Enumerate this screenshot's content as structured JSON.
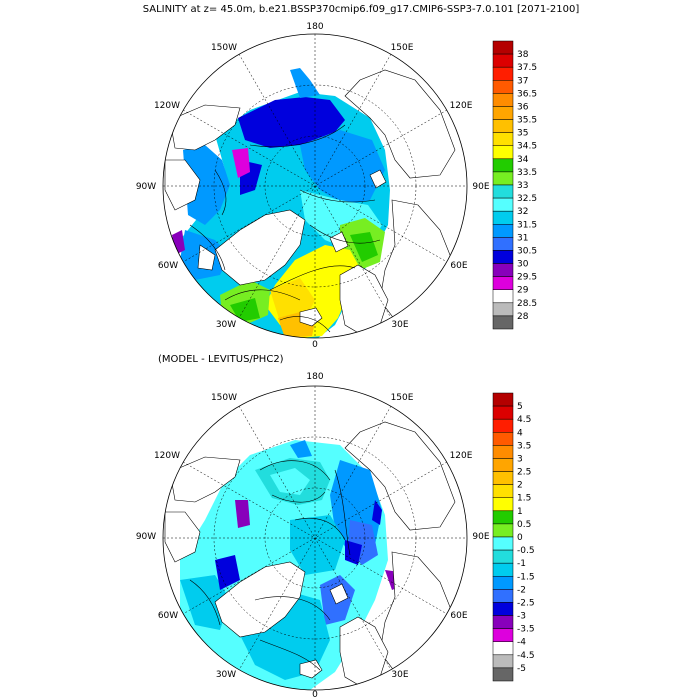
{
  "title": "SALINITY at z=  45.0m, b.e21.BSSP370cmip6.f09_g17.CMIP6-SSP3-7.0.101 [2071-2100]",
  "subtitle": "(MODEL - LEVITUS/PHC2)",
  "longitude_labels": {
    "top": "180",
    "top_right": "150E",
    "upper_right": "120E",
    "right": "90E",
    "lower_right": "60E",
    "bottom_right": "30E",
    "bottom": "0",
    "bottom_left": "30W",
    "lower_left": "60W",
    "left": "90W",
    "upper_left": "120W",
    "top_left": "150W"
  },
  "colorbars": {
    "salinity": {
      "labels": [
        "38",
        "37.5",
        "37",
        "36.5",
        "36",
        "35.5",
        "35",
        "34.5",
        "34",
        "33.5",
        "33",
        "32.5",
        "32",
        "31.5",
        "31",
        "30.5",
        "30",
        "29.5",
        "29",
        "28.5",
        "28"
      ],
      "colors": [
        "#b40000",
        "#dc0000",
        "#ff1e00",
        "#ff5a00",
        "#ff8c00",
        "#ffa500",
        "#ffc000",
        "#ffe000",
        "#ffff00",
        "#22cc00",
        "#77ee22",
        "#22dddd",
        "#55ffff",
        "#00ccee",
        "#0099ff",
        "#3070ff",
        "#0000dd",
        "#8800bb",
        "#dd00dd",
        "#ffffff",
        "#bbbbbb",
        "#666666"
      ]
    },
    "difference": {
      "labels": [
        "5",
        "4.5",
        "4",
        "3.5",
        "3",
        "2.5",
        "2",
        "1.5",
        "1",
        "0.5",
        "0",
        "-0.5",
        "-1",
        "-1.5",
        "-2",
        "-2.5",
        "-3",
        "-3.5",
        "-4",
        "-4.5",
        "-5"
      ],
      "colors": [
        "#b40000",
        "#dc0000",
        "#ff1e00",
        "#ff5a00",
        "#ff8c00",
        "#ffa500",
        "#ffc000",
        "#ffe000",
        "#ffff00",
        "#22cc00",
        "#77ee22",
        "#55ffff",
        "#22dddd",
        "#00ccee",
        "#0099ff",
        "#3070ff",
        "#0000dd",
        "#8800bb",
        "#dd00dd",
        "#ffffff",
        "#bbbbbb",
        "#666666"
      ]
    }
  }
}
